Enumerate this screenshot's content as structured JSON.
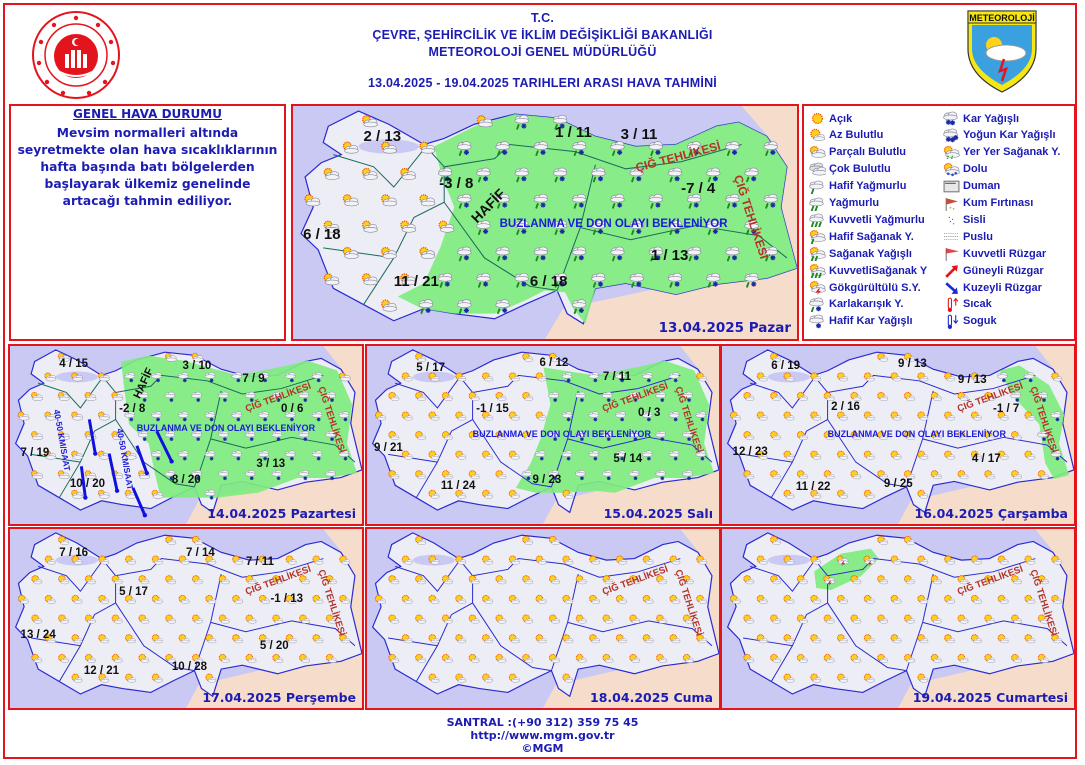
{
  "header": {
    "line1": "T.C.",
    "line2": "ÇEVRE, ŞEHİRCİLİK VE İKLİM DEĞİŞİKLİĞİ BAKANLIĞI",
    "line3": "METEOROLOJİ  GENEL  MÜDÜRLÜĞÜ",
    "line4": "13.04.2025  -  19.04.2025   TARIHLERI  ARASI  HAVA  TAHMİNİ",
    "right_logo_text": "METEOROLOJİ"
  },
  "summary": {
    "title": "GENEL HAVA DURUMU",
    "text": "Mevsim normalleri altında seyretmekte olan hava sıcaklıklarının hafta başında batı bölgelerden başlayarak ülkemiz genelinde artacağı tahmin ediliyor."
  },
  "legend": {
    "items": [
      {
        "icon": "acik",
        "label": "Açık"
      },
      {
        "icon": "az-bulutlu",
        "label": "Az Bulutlu"
      },
      {
        "icon": "parcali-bulutlu",
        "label": "Parçalı Bulutlu"
      },
      {
        "icon": "cok-bulutlu",
        "label": "Çok Bulutlu"
      },
      {
        "icon": "hafif-yagmurlu",
        "label": "Hafif Yağmurlu"
      },
      {
        "icon": "yagmurlu",
        "label": "Yağmurlu"
      },
      {
        "icon": "kuvvetli-yagmurlu",
        "label": "Kuvvetli Yağmurlu"
      },
      {
        "icon": "hafif-saganak",
        "label": "Hafif Sağanak Y."
      },
      {
        "icon": "saganak",
        "label": "Sağanak Yağışlı"
      },
      {
        "icon": "kuvvetli-saganak",
        "label": "KuvvetliSağanak Y"
      },
      {
        "icon": "gokgurultulu",
        "label": "Gökgürültülü S.Y."
      },
      {
        "icon": "karlakarisik",
        "label": "Karlakarışık Y."
      },
      {
        "icon": "hafif-kar",
        "label": "Hafif Kar Yağışlı"
      },
      {
        "icon": "kar",
        "label": "Kar Yağışlı"
      },
      {
        "icon": "yogun-kar",
        "label": "Yoğun Kar Yağışlı"
      },
      {
        "icon": "yer-yer-saganak",
        "label": "Yer Yer Sağanak Y."
      },
      {
        "icon": "dolu",
        "label": "Dolu"
      },
      {
        "icon": "duman",
        "label": "Duman"
      },
      {
        "icon": "kum-firtinasi",
        "label": "Kum Fırtınası"
      },
      {
        "icon": "sisli",
        "label": "Sisli"
      },
      {
        "icon": "puslu",
        "label": "Puslu"
      },
      {
        "icon": "kuvvetli-ruzgar",
        "label": "Kuvvetli Rüzgar"
      },
      {
        "icon": "guneyli-ruzgar",
        "label": "Güneyli Rüzgar"
      },
      {
        "icon": "kuzeyli-ruzgar",
        "label": "Kuzeyli Rüzgar"
      },
      {
        "icon": "sicak",
        "label": "Sıcak"
      },
      {
        "icon": "soguk",
        "label": "Soguk"
      }
    ]
  },
  "colors": {
    "accent": "#1c1cb4",
    "border": "#e3141b",
    "sea": "#c9c9f4",
    "land": "#ededf5",
    "neighbor": "#f5dccb",
    "warning_zone": "#7fec7f",
    "avalanche_text": "#b3332a"
  },
  "maps": [
    {
      "date_label": "13.04.2025 Pazar",
      "temps": [
        "2 / 13",
        "1 / 11",
        "3 / 11",
        "-3 / 8",
        "-7 / 4",
        "6 / 18",
        "1 / 13",
        "11 / 21",
        "6 / 18"
      ],
      "notes": {
        "frost": "BUZLANMA VE DON OLAYI BEKLENİYOR",
        "avalanche": "ÇIĞ TEHLİKESİ",
        "light": "HAFİF"
      },
      "icons": {
        "default": "parcali-bulutlu",
        "zone": "karlakarisik"
      }
    },
    {
      "date_label": "14.04.2025 Pazartesi",
      "temps": [
        "4 / 15",
        "3 / 10",
        "7 / 9",
        "-2 / 8",
        "0 / 6",
        "7 / 19",
        "10 / 20",
        "8 / 20",
        "3 / 13"
      ],
      "notes": {
        "frost": "BUZLANMA VE DON OLAYI BEKLENİYOR",
        "avalanche": "ÇIĞ TEHLİKESİ",
        "light": "HAFİF",
        "wind": "40-50 KM/SAAT"
      },
      "icons": {
        "default": "parcali-bulutlu",
        "zone": "hafif-kar"
      }
    },
    {
      "date_label": "15.04.2025 Salı",
      "temps": [
        "5 / 17",
        "6 / 12",
        "7 / 11",
        "-1 / 15",
        "0 / 3",
        "9 / 21",
        "11 / 24",
        "9 / 23",
        "5 / 14"
      ],
      "notes": {
        "frost": "BUZLANMA VE DON OLAYI BEKLENİYOR",
        "avalanche": "ÇIĞ TEHLİKESİ"
      },
      "icons": {
        "default": "az-bulutlu",
        "zone": "hafif-kar"
      }
    },
    {
      "date_label": "16.04.2025 Çarşamba",
      "temps": [
        "6 / 19",
        "9 / 13",
        "9 / 13",
        "2 / 16",
        "-1 / 7",
        "12 / 23",
        "11 / 22",
        "9 / 25",
        "4 / 17"
      ],
      "notes": {
        "frost": "BUZLANMA VE DON OLAYI BEKLENİYOR",
        "avalanche": "ÇIĞ TEHLİKESİ"
      },
      "icons": {
        "default": "az-bulutlu",
        "zone": "hafif-kar"
      }
    },
    {
      "date_label": "17.04.2025 Perşembe",
      "temps": [
        "7 / 16",
        "7 / 14",
        "7 / 11",
        "5 / 17",
        "-1 / 13",
        "13 / 24",
        "12 / 21",
        "10 / 28",
        "5 / 20"
      ],
      "notes": {
        "avalanche": "ÇIĞ TEHLİKESİ"
      },
      "icons": {
        "default": "az-bulutlu",
        "zone": "az-bulutlu"
      }
    },
    {
      "date_label": "18.04.2025 Cuma",
      "temps": [],
      "notes": {
        "avalanche": "ÇIĞ TEHLİKESİ"
      },
      "icons": {
        "default": "az-bulutlu",
        "zone": "az-bulutlu"
      }
    },
    {
      "date_label": "19.04.2025 Cumartesi",
      "temps": [],
      "notes": {
        "avalanche": "ÇIĞ TEHLİKESİ"
      },
      "icons": {
        "default": "az-bulutlu",
        "zone": "gokgurultulu"
      }
    }
  ],
  "footer": {
    "phone": "SANTRAL :(+90 312) 359 75 45",
    "url": "http://www.mgm.gov.tr",
    "copyright": "©MGM"
  }
}
